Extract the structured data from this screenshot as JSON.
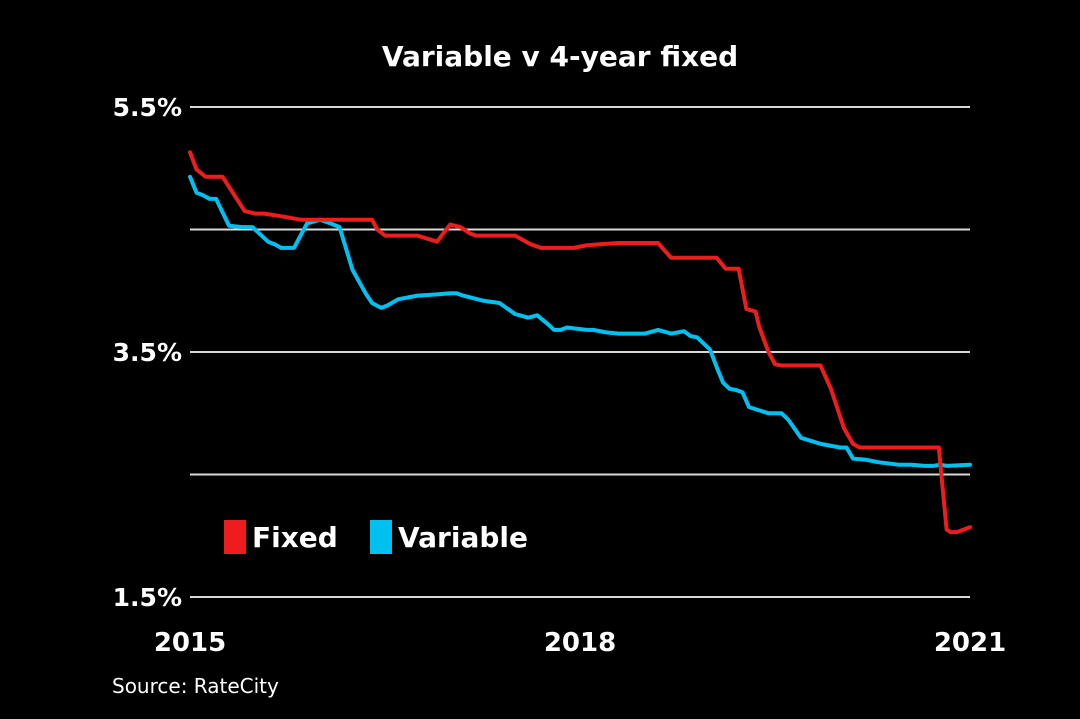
{
  "chart_data": {
    "type": "line",
    "title": "Variable v 4-year fixed",
    "source": "Source: RateCity",
    "xlabel": "",
    "ylabel": "",
    "xlim": [
      2015,
      2021
    ],
    "ylim": [
      1.5,
      5.5
    ],
    "yticks": [
      1.5,
      2.5,
      3.5,
      4.5,
      5.5
    ],
    "ytick_labels": [
      "1.5%",
      "",
      "3.5%",
      "",
      "5.5%"
    ],
    "xticks": [
      2015,
      2018,
      2021
    ],
    "xtick_labels": [
      "2015",
      "2018",
      "2021"
    ],
    "grid": true,
    "legend_position": "lower-left",
    "series": [
      {
        "name": "Fixed",
        "color": "#ee1c1c",
        "x": [
          2015.0,
          2015.05,
          2015.12,
          2015.25,
          2015.42,
          2015.5,
          2015.57,
          2015.75,
          2015.85,
          2016.0,
          2016.4,
          2016.44,
          2016.5,
          2016.75,
          2016.9,
          2017.0,
          2017.08,
          2017.15,
          2017.2,
          2017.5,
          2017.62,
          2017.7,
          2017.95,
          2018.05,
          2018.15,
          2018.3,
          2018.6,
          2018.7,
          2018.8,
          2019.05,
          2019.12,
          2019.22,
          2019.28,
          2019.35,
          2019.38,
          2019.45,
          2019.5,
          2019.55,
          2019.6,
          2019.68,
          2019.85,
          2019.93,
          2020.03,
          2020.1,
          2020.15,
          2020.25,
          2020.5,
          2020.7,
          2020.76,
          2020.82,
          2020.85,
          2020.9,
          2020.95,
          2021.0
        ],
        "values": [
          5.13,
          4.99,
          4.93,
          4.93,
          4.65,
          4.63,
          4.63,
          4.6,
          4.58,
          4.58,
          4.58,
          4.5,
          4.45,
          4.45,
          4.4,
          4.54,
          4.52,
          4.47,
          4.45,
          4.45,
          4.38,
          4.35,
          4.35,
          4.37,
          4.38,
          4.39,
          4.39,
          4.27,
          4.27,
          4.27,
          4.18,
          4.18,
          3.85,
          3.83,
          3.7,
          3.5,
          3.4,
          3.39,
          3.39,
          3.39,
          3.39,
          3.2,
          2.88,
          2.75,
          2.72,
          2.72,
          2.72,
          2.72,
          2.72,
          2.05,
          2.03,
          2.03,
          2.05,
          2.07
        ]
      },
      {
        "name": "Variable",
        "color": "#00c0f0",
        "x": [
          2015.0,
          2015.05,
          2015.1,
          2015.15,
          2015.2,
          2015.3,
          2015.4,
          2015.48,
          2015.55,
          2015.6,
          2015.65,
          2015.7,
          2015.8,
          2015.9,
          2016.0,
          2016.08,
          2016.15,
          2016.25,
          2016.35,
          2016.4,
          2016.47,
          2016.52,
          2016.6,
          2016.75,
          2016.9,
          2017.0,
          2017.05,
          2017.1,
          2017.25,
          2017.38,
          2017.5,
          2017.6,
          2017.67,
          2017.75,
          2017.8,
          2017.85,
          2017.9,
          2018.05,
          2018.1,
          2018.2,
          2018.3,
          2018.5,
          2018.6,
          2018.7,
          2018.8,
          2018.85,
          2018.9,
          2019.0,
          2019.05,
          2019.1,
          2019.15,
          2019.2,
          2019.25,
          2019.3,
          2019.45,
          2019.55,
          2019.6,
          2019.7,
          2019.85,
          2020.0,
          2020.05,
          2020.1,
          2020.2,
          2020.3,
          2020.45,
          2020.55,
          2020.65,
          2020.72,
          2020.77,
          2020.82,
          2021.0
        ],
        "values": [
          4.93,
          4.8,
          4.78,
          4.75,
          4.75,
          4.53,
          4.52,
          4.52,
          4.45,
          4.4,
          4.38,
          4.35,
          4.35,
          4.55,
          4.58,
          4.55,
          4.52,
          4.17,
          3.98,
          3.9,
          3.86,
          3.88,
          3.93,
          3.96,
          3.97,
          3.98,
          3.98,
          3.96,
          3.92,
          3.9,
          3.81,
          3.78,
          3.8,
          3.73,
          3.68,
          3.68,
          3.7,
          3.68,
          3.68,
          3.66,
          3.65,
          3.65,
          3.68,
          3.65,
          3.67,
          3.63,
          3.62,
          3.52,
          3.38,
          3.25,
          3.2,
          3.19,
          3.17,
          3.05,
          3.0,
          3.0,
          2.95,
          2.8,
          2.75,
          2.72,
          2.72,
          2.63,
          2.62,
          2.6,
          2.58,
          2.58,
          2.57,
          2.57,
          2.58,
          2.57,
          2.58
        ]
      }
    ]
  }
}
